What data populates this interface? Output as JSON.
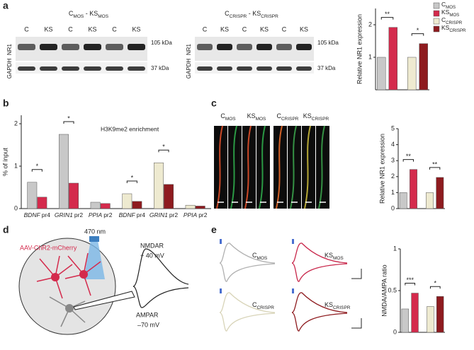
{
  "panel_labels": [
    "a",
    "b",
    "c",
    "d",
    "e"
  ],
  "blots": [
    {
      "title": [
        {
          "text": "C",
          "subscript": "MOS"
        },
        {
          "text": " - KS",
          "subscript": "MOS"
        }
      ],
      "lanes": [
        "C",
        "KS",
        "C",
        "KS",
        "C",
        "KS"
      ],
      "rows": [
        "NR1",
        "GAPDH"
      ],
      "sizes": [
        "105 kDa",
        "37 kDa"
      ]
    },
    {
      "title": [
        {
          "text": "C",
          "subscript": "CRISPR"
        },
        {
          "text": " - KS",
          "subscript": "CRISPR"
        }
      ],
      "lanes": [
        "C",
        "KS",
        "C",
        "KS",
        "C",
        "KS"
      ],
      "rows": [
        "NR1",
        "GAPDH"
      ],
      "sizes": [
        "105 kDa",
        "37 kDa"
      ]
    }
  ],
  "chart_data": [
    {
      "type": "bar",
      "ylabel": "Relative NR1 expression",
      "values": [
        1,
        1.92,
        1,
        1.42
      ],
      "colors": [
        "#c8c8c8",
        "#d42a4c",
        "#eeead0",
        "#8e1b1f"
      ],
      "ylim": [
        0,
        2.5
      ],
      "yticks": [
        1,
        2
      ],
      "legend": [
        {
          "text": "C",
          "subscript": "MOS"
        },
        {
          "text": "KS",
          "subscript": "MOS"
        },
        {
          "text": "C",
          "subscript": "CRISPR"
        },
        {
          "text": "KS",
          "subscript": "CRISPR"
        }
      ],
      "annotations": [
        {
          "text": "**",
          "bars": [
            0,
            1
          ]
        },
        {
          "text": "*",
          "bars": [
            2,
            3
          ]
        }
      ]
    },
    {
      "type": "grouped_bar",
      "ylabel": "% of input",
      "subtitle": "H3K9me2 enrichment",
      "categories": [
        {
          "gene": "BDNF",
          "promoter": "pr4"
        },
        {
          "gene": "GRIN1",
          "promoter": "pr2"
        },
        {
          "gene": "PPIA",
          "promoter": "pr2"
        },
        {
          "gene": "BDNF",
          "promoter": "pr4"
        },
        {
          "gene": "GRIN1",
          "promoter": "pr2"
        },
        {
          "gene": "PPIA",
          "promoter": "pr2"
        }
      ],
      "series": [
        {
          "values": [
            0.62,
            1.75,
            0.15,
            0.35,
            1.08,
            0.08
          ],
          "colors": [
            "#c8c8c8",
            "#c8c8c8",
            "#c8c8c8",
            "#eeead0",
            "#eeead0",
            "#eeead0"
          ]
        },
        {
          "values": [
            0.27,
            0.6,
            0.12,
            0.17,
            0.57,
            0.06
          ],
          "colors": [
            "#d42a4c",
            "#d42a4c",
            "#d42a4c",
            "#8e1b1f",
            "#8e1b1f",
            "#8e1b1f"
          ]
        }
      ],
      "ylim": [
        0,
        2.2
      ],
      "yticks": [
        0,
        1,
        2
      ],
      "annotations": [
        {
          "text": "*",
          "category": 0
        },
        {
          "text": "*",
          "category": 1
        },
        {
          "text": "*",
          "category": 3
        },
        {
          "text": "*",
          "category": 4
        }
      ]
    },
    {
      "type": "bar",
      "ylabel": "Relative NR1 expression",
      "values": [
        1,
        2.45,
        1,
        1.95
      ],
      "colors": [
        "#c8c8c8",
        "#d42a4c",
        "#eeead0",
        "#8e1b1f"
      ],
      "ylim": [
        0,
        5
      ],
      "yticks": [
        0,
        1,
        2,
        3,
        4,
        5
      ],
      "annotations": [
        {
          "text": "**",
          "bars": [
            0,
            1
          ]
        },
        {
          "text": "**",
          "bars": [
            2,
            3
          ]
        }
      ]
    },
    {
      "type": "bar",
      "ylabel": "NMDA/AMPA ratio",
      "values": [
        0.28,
        0.47,
        0.31,
        0.43
      ],
      "colors": [
        "#c8c8c8",
        "#d42a4c",
        "#eeead0",
        "#8e1b1f"
      ],
      "ylim": [
        0,
        1
      ],
      "yticks": [
        0,
        0.5,
        1
      ],
      "annotations": [
        {
          "text": "***",
          "bars": [
            0,
            1
          ]
        },
        {
          "text": "*",
          "bars": [
            2,
            3
          ]
        }
      ]
    }
  ],
  "images": {
    "labels": [
      {
        "text": "C",
        "subscript": "MOS"
      },
      {
        "text": "KS",
        "subscript": "MOS"
      },
      {
        "text": "C",
        "subscript": "CRISPR"
      },
      {
        "text": "KS",
        "subscript": "CRISPR"
      }
    ]
  },
  "diagram": {
    "light": "470 nm",
    "virus": "AAV-ChR2-mCherry",
    "nmdar": "NMDAR",
    "nmdar_hold": "+ 40 mV",
    "ampar": "AMPAR",
    "ampar_hold": "–70 mV"
  },
  "traces": {
    "labels": [
      {
        "text": "C",
        "subscript": "MOS"
      },
      {
        "text": "KS",
        "subscript": "MOS"
      },
      {
        "text": "C",
        "subscript": "CRISPR"
      },
      {
        "text": "KS",
        "subscript": "CRISPR"
      }
    ]
  }
}
